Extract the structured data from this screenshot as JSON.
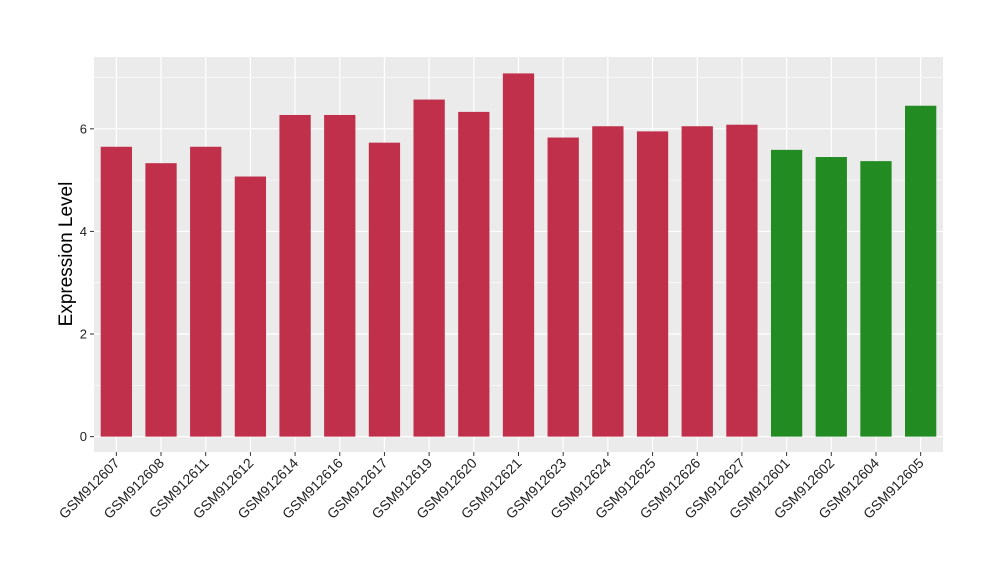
{
  "chart_data": {
    "type": "bar",
    "title": "",
    "xlabel": "",
    "ylabel": "Expression Level",
    "ylim": [
      -0.3,
      7.4
    ],
    "yticks": [
      0,
      2,
      4,
      6
    ],
    "grid": true,
    "legend": "none",
    "categories": [
      "GSM912607",
      "GSM912608",
      "GSM912611",
      "GSM912612",
      "GSM912614",
      "GSM912616",
      "GSM912617",
      "GSM912619",
      "GSM912620",
      "GSM912621",
      "GSM912623",
      "GSM912624",
      "GSM912625",
      "GSM912626",
      "GSM912627",
      "GSM912601",
      "GSM912602",
      "GSM912604",
      "GSM912605"
    ],
    "values": [
      5.65,
      5.33,
      5.65,
      5.07,
      6.27,
      6.27,
      5.73,
      6.57,
      6.33,
      7.08,
      5.83,
      6.05,
      5.95,
      6.05,
      6.08,
      5.59,
      5.45,
      5.37,
      6.45
    ],
    "bar_colors": [
      "#c0304a",
      "#c0304a",
      "#c0304a",
      "#c0304a",
      "#c0304a",
      "#c0304a",
      "#c0304a",
      "#c0304a",
      "#c0304a",
      "#c0304a",
      "#c0304a",
      "#c0304a",
      "#c0304a",
      "#c0304a",
      "#c0304a",
      "#228b22",
      "#228b22",
      "#228b22",
      "#228b22"
    ],
    "panel_color": "#ebebeb",
    "grid_color": "#ffffff"
  }
}
